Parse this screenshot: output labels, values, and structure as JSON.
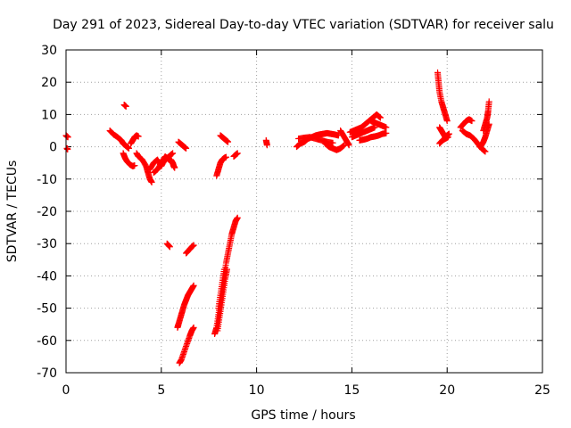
{
  "chart_data": {
    "type": "scatter",
    "title": "Day 291 of 2023, Sidereal Day-to-day VTEC variation (SDTVAR) for receiver salu",
    "xlabel": "GPS time / hours",
    "ylabel": "SDTVAR / TECUs",
    "xlim": [
      0,
      25
    ],
    "ylim": [
      -70,
      30
    ],
    "xticks": [
      0,
      5,
      10,
      15,
      20,
      25
    ],
    "yticks": [
      -70,
      -60,
      -50,
      -40,
      -30,
      -20,
      -10,
      0,
      10,
      20,
      30
    ],
    "xtick_labels": [
      "0",
      "5",
      "10",
      "15",
      "20",
      "25"
    ],
    "ytick_labels": [
      "-70",
      "-60",
      "-50",
      "-40",
      "-30",
      "-20",
      "-10",
      "0",
      "10",
      "20",
      "30"
    ],
    "grid": true,
    "marker": "+",
    "color": "#ff0000",
    "segments": [
      {
        "name": "arc-00a",
        "x": [
          0.0,
          0.05,
          0.1
        ],
        "y": [
          3.5,
          3.2,
          3.0
        ]
      },
      {
        "name": "arc-00b",
        "x": [
          0.05,
          0.08
        ],
        "y": [
          -0.5,
          -0.8
        ]
      },
      {
        "name": "arc-01",
        "x": [
          2.3,
          2.5,
          2.7,
          2.9,
          3.0,
          3.1,
          3.2,
          3.3
        ],
        "y": [
          5,
          3.8,
          3,
          2,
          1,
          0.5,
          0,
          -0.5
        ]
      },
      {
        "name": "arc-02",
        "x": [
          3.05,
          3.15
        ],
        "y": [
          13,
          12.5
        ]
      },
      {
        "name": "arc-03",
        "x": [
          3.0,
          3.1,
          3.2,
          3.35,
          3.5,
          3.6
        ],
        "y": [
          -2,
          -3.5,
          -4.5,
          -5.5,
          -6,
          -5.8
        ]
      },
      {
        "name": "arc-04",
        "x": [
          3.4,
          3.5,
          3.6,
          3.7,
          3.8
        ],
        "y": [
          1,
          2,
          3,
          3.5,
          3.2
        ]
      },
      {
        "name": "arc-05",
        "x": [
          3.7,
          3.8,
          4.0,
          4.2,
          4.3,
          4.4,
          4.5
        ],
        "y": [
          -2,
          -3,
          -4,
          -6,
          -8,
          -10,
          -11
        ]
      },
      {
        "name": "arc-06",
        "x": [
          4.4,
          4.6,
          4.8,
          5.0,
          5.2,
          5.4,
          5.6
        ],
        "y": [
          -7,
          -5,
          -4,
          -6,
          -4,
          -3,
          -2
        ]
      },
      {
        "name": "arc-07",
        "x": [
          4.6,
          4.8,
          5.0,
          5.2,
          5.4,
          5.6
        ],
        "y": [
          -8,
          -7,
          -5,
          -3,
          -4,
          -5
        ]
      },
      {
        "name": "arc-08",
        "x": [
          5.5,
          5.6,
          5.65,
          5.7
        ],
        "y": [
          -4,
          -5,
          -6,
          -6.5
        ]
      },
      {
        "name": "arc-09",
        "x": [
          5.9,
          6.0,
          6.1,
          6.2,
          6.3
        ],
        "y": [
          1.5,
          1,
          0.5,
          0,
          -0.5
        ]
      },
      {
        "name": "arc-10",
        "x": [
          5.3,
          5.45
        ],
        "y": [
          -30,
          -31
        ]
      },
      {
        "name": "arc-11",
        "x": [
          5.85,
          5.9,
          6.0,
          6.1,
          6.2,
          6.3,
          6.4,
          6.5,
          6.6,
          6.7
        ],
        "y": [
          -56,
          -55,
          -53,
          -51,
          -49,
          -47.5,
          -46,
          -45,
          -44,
          -43
        ]
      },
      {
        "name": "arc-12",
        "x": [
          5.95,
          6.05,
          6.2,
          6.35,
          6.5,
          6.6,
          6.7
        ],
        "y": [
          -67,
          -66,
          -63.5,
          -61,
          -58.5,
          -57,
          -56
        ]
      },
      {
        "name": "arc-13",
        "x": [
          6.3,
          6.45,
          6.6,
          6.7
        ],
        "y": [
          -33,
          -32,
          -31,
          -30.5
        ]
      },
      {
        "name": "arc-14",
        "x": [
          7.8,
          7.9,
          8.0,
          8.1,
          8.2,
          8.3,
          8.4,
          8.5,
          8.6,
          8.7,
          8.8,
          8.9,
          9.0
        ],
        "y": [
          -58,
          -56,
          -52,
          -48,
          -44,
          -40,
          -36,
          -33,
          -30,
          -27,
          -25,
          -23,
          -22
        ]
      },
      {
        "name": "arc-15",
        "x": [
          7.95,
          8.05,
          8.15,
          8.25,
          8.35,
          8.45
        ],
        "y": [
          -57,
          -53,
          -49,
          -45,
          -41,
          -38
        ]
      },
      {
        "name": "arc-16",
        "x": [
          8.0,
          8.1,
          8.2,
          8.3
        ],
        "y": [
          -50,
          -46,
          -42,
          -38
        ]
      },
      {
        "name": "arc-17",
        "x": [
          7.9,
          8.0,
          8.1,
          8.2,
          8.3,
          8.4
        ],
        "y": [
          -9,
          -7,
          -5,
          -4,
          -3.5,
          -3.2
        ]
      },
      {
        "name": "arc-18",
        "x": [
          8.1,
          8.2,
          8.3,
          8.4,
          8.5
        ],
        "y": [
          3.5,
          3,
          2.5,
          2,
          1.5
        ]
      },
      {
        "name": "arc-19",
        "x": [
          8.8,
          8.9,
          9.0
        ],
        "y": [
          -3,
          -2.5,
          -2
        ]
      },
      {
        "name": "arc-20",
        "x": [
          10.5,
          10.55
        ],
        "y": [
          2,
          0.5
        ]
      },
      {
        "name": "arc-21",
        "x": [
          12.1,
          12.3,
          12.5,
          12.7,
          12.9,
          13.1,
          13.3,
          13.5,
          13.7,
          13.9,
          14.1,
          14.3
        ],
        "y": [
          0,
          1,
          1.5,
          2.5,
          3,
          3.5,
          3.8,
          4,
          4.2,
          4,
          3.8,
          3.5
        ]
      },
      {
        "name": "arc-22",
        "x": [
          12.2,
          12.5,
          12.8,
          13.1,
          13.4,
          13.7,
          14.0
        ],
        "y": [
          2.5,
          2.8,
          3,
          2.5,
          2,
          1.5,
          1.2
        ]
      },
      {
        "name": "arc-23",
        "x": [
          13.6,
          13.8,
          14.0,
          14.2,
          14.4,
          14.6
        ],
        "y": [
          1,
          0,
          -0.5,
          -1,
          -0.5,
          0.5
        ]
      },
      {
        "name": "arc-24",
        "x": [
          14.4,
          14.55,
          14.7,
          14.85
        ],
        "y": [
          5,
          3.5,
          2,
          0.5
        ]
      },
      {
        "name": "arc-25",
        "x": [
          14.9,
          15.1,
          15.3,
          15.5,
          15.7,
          15.9,
          16.1,
          16.3,
          16.5
        ],
        "y": [
          4.5,
          5,
          5.5,
          6,
          7,
          8,
          9,
          10,
          9
        ]
      },
      {
        "name": "arc-26",
        "x": [
          15.0,
          15.2,
          15.4,
          15.6,
          15.8,
          16.0,
          16.2
        ],
        "y": [
          3,
          3.5,
          4,
          4.5,
          5,
          5.5,
          6
        ]
      },
      {
        "name": "arc-27",
        "x": [
          15.4,
          15.6,
          15.8,
          16.0,
          16.2,
          16.4,
          16.6,
          16.8
        ],
        "y": [
          2,
          2.2,
          2.5,
          3,
          3.2,
          3.5,
          4,
          4.2
        ]
      },
      {
        "name": "arc-28",
        "x": [
          16.0,
          16.2,
          16.4,
          16.6,
          16.8
        ],
        "y": [
          8,
          7.5,
          7,
          6.5,
          6
        ]
      },
      {
        "name": "arc-29",
        "x": [
          19.5,
          19.55,
          19.6,
          19.7,
          19.8,
          19.9,
          20.0
        ],
        "y": [
          23,
          20,
          17,
          14,
          12,
          10,
          8
        ]
      },
      {
        "name": "arc-30",
        "x": [
          19.6,
          19.7,
          19.8,
          19.9,
          20.0,
          20.1
        ],
        "y": [
          6,
          5,
          4,
          3,
          3.5,
          4
        ]
      },
      {
        "name": "arc-31",
        "x": [
          19.6,
          19.75,
          19.9,
          20.05
        ],
        "y": [
          1,
          2,
          2.5,
          3
        ]
      },
      {
        "name": "arc-32",
        "x": [
          20.7,
          20.85,
          21.0,
          21.15,
          21.3
        ],
        "y": [
          6,
          7,
          8,
          8.5,
          8
        ]
      },
      {
        "name": "arc-33",
        "x": [
          20.8,
          21.0,
          21.2,
          21.4,
          21.6,
          21.8,
          22.0
        ],
        "y": [
          5,
          4,
          3.5,
          2.5,
          1,
          -0.5,
          -1.5
        ]
      },
      {
        "name": "arc-34",
        "x": [
          21.7,
          21.8,
          21.9,
          22.0,
          22.1,
          22.2
        ],
        "y": [
          0,
          0.5,
          1.5,
          3,
          5,
          7
        ]
      },
      {
        "name": "arc-35",
        "x": [
          21.9,
          22.0,
          22.1,
          22.15,
          22.2
        ],
        "y": [
          5,
          7,
          9,
          11,
          14
        ]
      }
    ]
  }
}
